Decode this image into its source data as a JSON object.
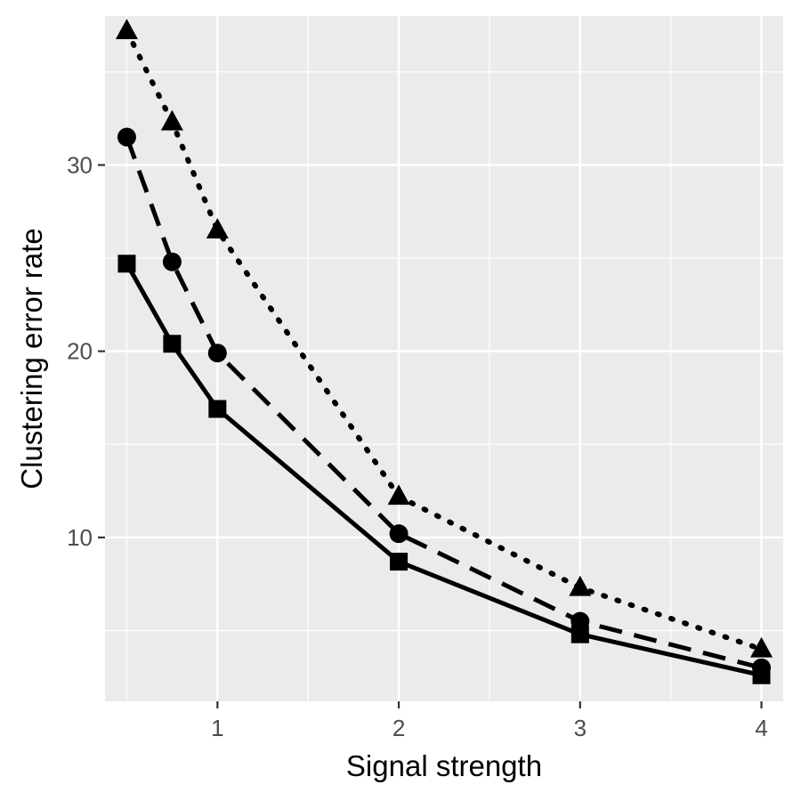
{
  "chart_data": {
    "type": "line",
    "title": "",
    "xlabel": "Signal strength",
    "ylabel": "Clustering error rate",
    "xlim": [
      0.38,
      4.12
    ],
    "ylim": [
      1.2,
      38.0
    ],
    "x_ticks": [
      1,
      2,
      3,
      4
    ],
    "y_ticks": [
      10,
      20,
      30
    ],
    "x": [
      0.5,
      0.75,
      1,
      2,
      3,
      4
    ],
    "grid": true,
    "legend": "none",
    "colors": {
      "panel": "#ebebeb",
      "grid": "#ffffff",
      "series": "#000000"
    },
    "series": [
      {
        "marker": "square",
        "line_style": "solid",
        "values": [
          24.7,
          20.4,
          16.9,
          8.7,
          4.8,
          2.6
        ]
      },
      {
        "marker": "circle",
        "line_style": "dashed",
        "values": [
          31.5,
          24.8,
          19.9,
          10.2,
          5.5,
          3.0
        ]
      },
      {
        "marker": "triangle",
        "line_style": "dotted",
        "values": [
          37.2,
          32.3,
          26.5,
          12.2,
          7.3,
          4.0
        ]
      }
    ]
  }
}
